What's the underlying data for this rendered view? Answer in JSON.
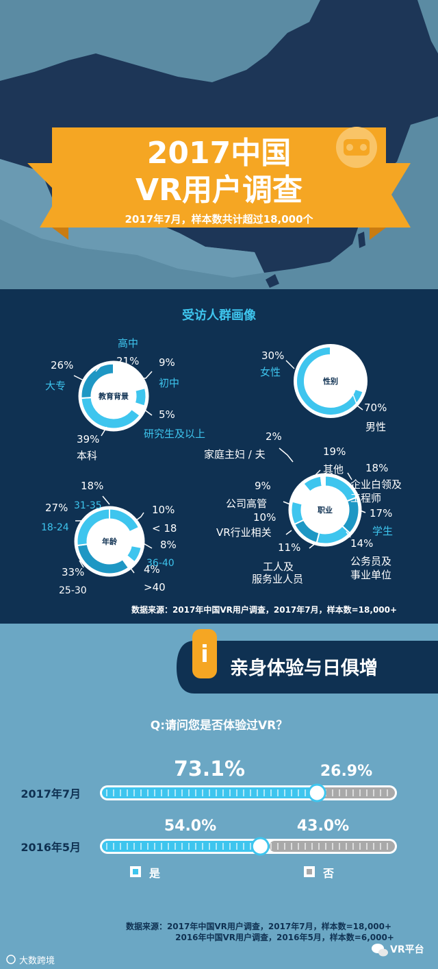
{
  "colors": {
    "hero_bg": "#5b8ba3",
    "map": "#1d3657",
    "orange": "#f5a623",
    "orange_dark": "#c97c12",
    "navy": "#0f3152",
    "cyan": "#3ec5ee",
    "cyan_dark": "#1e97c4",
    "bottom_bg": "#6ba7c4",
    "grey_bar": "#a9a9a9",
    "white": "#ffffff"
  },
  "hero": {
    "title_line1": "2017中国",
    "title_line2": "VR用户调查",
    "subtitle": "2017年7月，样本数共计超过18,000个",
    "icon": "vr-headset-icon"
  },
  "profile": {
    "heading": "受访人群画像",
    "source": "数据来源：2017年中国VR用户调查，2017年7月，样本数=18,000+"
  },
  "chart_data": [
    {
      "type": "pie",
      "title": "教育背景",
      "categories": [
        "高中",
        "初中",
        "研究生及以上",
        "本科",
        "大专"
      ],
      "values": [
        21,
        9,
        5,
        39,
        26
      ],
      "labels": [
        "21%",
        "9%",
        "5%",
        "39%",
        "26%"
      ],
      "colors": [
        "#ffffff",
        "#3ec5ee",
        "#ffffff",
        "#3ec5ee",
        "#1e97c4"
      ]
    },
    {
      "type": "pie",
      "title": "性别",
      "categories": [
        "女性",
        "男性"
      ],
      "values": [
        30,
        70
      ],
      "labels": [
        "30%",
        "70%"
      ],
      "colors": [
        "#ffffff",
        "#3ec5ee"
      ]
    },
    {
      "type": "pie",
      "title": "年龄",
      "categories": [
        "31-35",
        "< 18",
        "36-40",
        ">40",
        "25-30",
        "18-24"
      ],
      "values": [
        18,
        10,
        8,
        4,
        33,
        27
      ],
      "labels": [
        "18%",
        "10%",
        "8%",
        "4%",
        "33%",
        "27%"
      ],
      "colors": [
        "#3ec5ee",
        "#ffffff",
        "#3ec5ee",
        "#ffffff",
        "#1e97c4",
        "#3ec5ee"
      ]
    },
    {
      "type": "pie",
      "title": "职业",
      "categories": [
        "其他",
        "企业白领及工程师",
        "学生",
        "公务员及事业单位",
        "工人及服务业人员",
        "VR行业相关",
        "公司高管",
        "家庭主妇 / 夫"
      ],
      "values": [
        19,
        18,
        17,
        14,
        11,
        10,
        9,
        2
      ],
      "labels": [
        "19%",
        "18%",
        "17%",
        "14%",
        "11%",
        "10%",
        "9%",
        "2%"
      ],
      "colors": [
        "#3ec5ee",
        "#1e97c4",
        "#3ec5ee",
        "#1e97c4",
        "#3ec5ee",
        "#ffffff",
        "#3ec5ee",
        "#ffffff"
      ]
    },
    {
      "type": "bar",
      "title": "Q:请问您是否体验过VR？",
      "categories": [
        "2017年7月",
        "2016年5月"
      ],
      "series": [
        {
          "name": "是",
          "values": [
            73.1,
            54.0
          ],
          "labels": [
            "73.1%",
            "54.0%"
          ]
        },
        {
          "name": "否",
          "values": [
            26.9,
            43.0
          ],
          "labels": [
            "26.9%",
            "43.0%"
          ]
        }
      ],
      "ylim": [
        0,
        100
      ]
    }
  ],
  "section": {
    "icon": "info-icon",
    "badge_char": "i",
    "title": "亲身体验与日俱增"
  },
  "experience": {
    "legend_yes": "是",
    "legend_no": "否",
    "source_line1": "数据来源：2017年中国VR用户调查，2017年7月，样本数=18,000+",
    "source_line2": "2016年中国VR用户调查，2016年5月，样本数=6,000+"
  },
  "footer": {
    "left_logo": "大数跨境",
    "right_logo": "VR平台",
    "right_icon": "wechat-icon"
  }
}
